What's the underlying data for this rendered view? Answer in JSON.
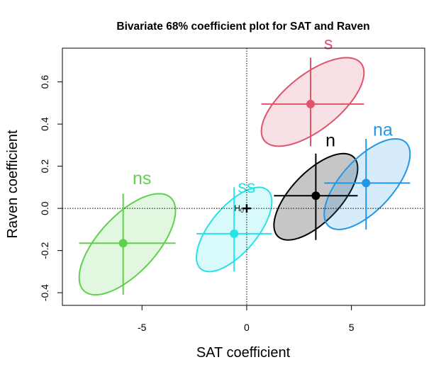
{
  "chart_data": {
    "type": "scatter",
    "title": "Bivariate 68% coefficient plot for SAT and Raven",
    "xlabel": "SAT coefficient",
    "ylabel": "Raven coefficient",
    "xlim": [
      -8.8,
      8.5
    ],
    "ylim": [
      -0.46,
      0.76
    ],
    "xticks": [
      -5,
      0,
      5
    ],
    "yticks": [
      -0.4,
      -0.2,
      0.0,
      0.2,
      0.4,
      0.6
    ],
    "xtick_labels": [
      "-5",
      "0",
      "5"
    ],
    "ytick_labels": [
      "-0.4",
      "-0.2",
      "0.0",
      "0.2",
      "0.4",
      "0.6"
    ],
    "grid": false,
    "reference_lines": {
      "x": 0,
      "y": 0,
      "style": "dotted"
    },
    "hypothesis_point": {
      "label": "H",
      "sub": "0",
      "x": 0,
      "y": 0
    },
    "series": [
      {
        "name": "n",
        "x": 3.3,
        "y": 0.06,
        "color": "#000000",
        "fill": "#bebebe",
        "ellipse": {
          "x_range": [
            1.3,
            5.3
          ],
          "y_range": [
            -0.15,
            0.26
          ]
        },
        "label_pos": [
          4.0,
          0.295
        ]
      },
      {
        "name": "s",
        "x": 3.05,
        "y": 0.495,
        "color": "#df536b",
        "fill": "#f9dbe1",
        "ellipse": {
          "x_range": [
            0.7,
            5.6
          ],
          "y_range": [
            0.295,
            0.715
          ]
        },
        "label_pos": [
          3.9,
          0.755
        ]
      },
      {
        "name": "ns",
        "x": -5.9,
        "y": -0.165,
        "color": "#61d04f",
        "fill": "#dff5db",
        "ellipse": {
          "x_range": [
            -8.0,
            -3.4
          ],
          "y_range": [
            -0.41,
            0.07
          ]
        },
        "label_pos": [
          -5.0,
          0.115
        ]
      },
      {
        "name": "na",
        "x": 5.7,
        "y": 0.12,
        "color": "#2297e6",
        "fill": "#d2e8fa",
        "ellipse": {
          "x_range": [
            3.7,
            7.8
          ],
          "y_range": [
            -0.1,
            0.33
          ]
        },
        "label_pos": [
          6.5,
          0.345
        ]
      },
      {
        "name": "ss",
        "x": -0.6,
        "y": -0.12,
        "color": "#28e2e5",
        "fill": "#d3f8f8",
        "ellipse": {
          "x_range": [
            -2.4,
            1.2
          ],
          "y_range": [
            -0.3,
            0.1
          ]
        },
        "label_pos": [
          0.0,
          0.075
        ]
      }
    ]
  }
}
